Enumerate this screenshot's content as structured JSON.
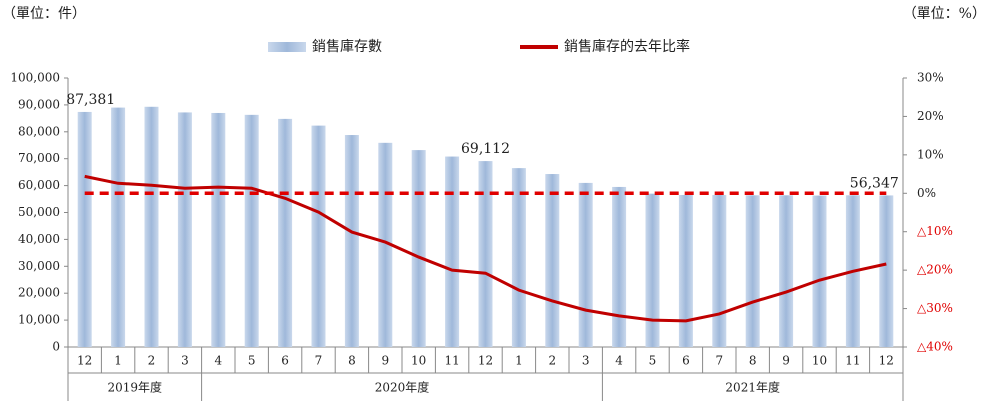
{
  "chart_data": {
    "type": "bar-line",
    "ylabel": "（單位：件）",
    "y2label": "（單位：%）",
    "categories": [
      "12",
      "1",
      "2",
      "3",
      "4",
      "5",
      "6",
      "7",
      "8",
      "9",
      "10",
      "11",
      "12",
      "1",
      "2",
      "3",
      "4",
      "5",
      "6",
      "7",
      "8",
      "9",
      "10",
      "11",
      "12"
    ],
    "groups": [
      {
        "label": "2019年度",
        "count": 4
      },
      {
        "label": "2020年度",
        "count": 12
      },
      {
        "label": "2021年度",
        "count": 9
      }
    ],
    "series": [
      {
        "name": "銷售庫存數",
        "type": "bar",
        "color": "#a9c0de",
        "values": [
          87381,
          89000,
          89300,
          87200,
          87000,
          86300,
          84800,
          82300,
          78800,
          75900,
          73200,
          70800,
          69112,
          66500,
          64300,
          61000,
          59500,
          57000,
          56500,
          56500,
          56400,
          56400,
          56300,
          56400,
          56347
        ],
        "value_labels": [
          "87,381",
          null,
          null,
          null,
          null,
          null,
          null,
          null,
          null,
          null,
          null,
          null,
          "69,112",
          null,
          null,
          null,
          null,
          null,
          null,
          null,
          null,
          null,
          null,
          null,
          "56,347"
        ]
      },
      {
        "name": "銷售庫存的去年比率",
        "type": "line",
        "axis": "y2",
        "color": "#c00000",
        "values": [
          4.4,
          2.6,
          2.1,
          1.3,
          1.6,
          1.3,
          -1.3,
          -4.9,
          -10.1,
          -12.7,
          -16.6,
          -20,
          -20.8,
          -25.2,
          -28,
          -30.4,
          -31.9,
          -33,
          -33.2,
          -31.4,
          -28.3,
          -25.7,
          -22.6,
          -20.3,
          -18.4
        ]
      }
    ],
    "zero_line": {
      "axis": "y2",
      "value": 0,
      "color": "#e00000"
    },
    "ylim": [
      0,
      100000
    ],
    "yticks": [
      0,
      {
        "value": 10000,
        "label": "10,000"
      },
      {
        "value": 20000,
        "label": "20,000"
      },
      {
        "value": 30000,
        "label": "30,000"
      },
      {
        "value": 40000,
        "label": "40,000"
      },
      {
        "value": 50000,
        "label": "50,000"
      },
      {
        "value": 60000,
        "label": "60,000"
      },
      {
        "value": 70000,
        "label": "70,000"
      },
      {
        "value": 80000,
        "label": "80,000"
      },
      {
        "value": 90000,
        "label": "90,000"
      },
      {
        "value": 100000,
        "label": "100,000"
      }
    ],
    "y2lim": [
      -40,
      30
    ],
    "y2ticks": [
      {
        "value": -40,
        "label": "△40%"
      },
      {
        "value": -30,
        "label": "△30%"
      },
      {
        "value": -20,
        "label": "△20%"
      },
      {
        "value": -10,
        "label": "△10%"
      },
      {
        "value": 0,
        "label": "0%"
      },
      {
        "value": 10,
        "label": "10%"
      },
      {
        "value": 20,
        "label": "20%"
      },
      {
        "value": 30,
        "label": "30%"
      }
    ],
    "negative_tick_color": "#e00000",
    "grid": false
  }
}
